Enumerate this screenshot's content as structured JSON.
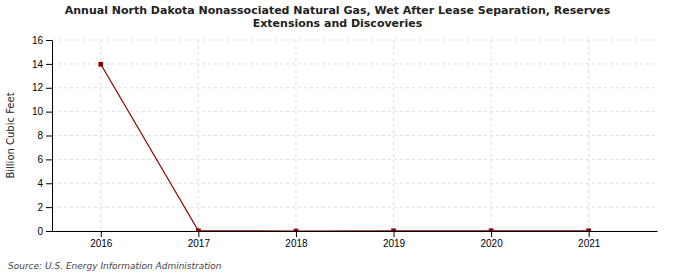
{
  "chart_data": {
    "type": "line",
    "title": "Annual North Dakota Nonassociated Natural Gas, Wet After Lease Separation, Reserves\nExtensions and Discoveries",
    "ylabel": "Billion Cubic Feet",
    "source": "Source: U.S. Energy Information Administration",
    "x": [
      2016,
      2017,
      2018,
      2019,
      2020,
      2021
    ],
    "values": [
      13.967,
      0.02,
      0.0,
      0.02,
      0.02,
      0.02
    ],
    "color": "#8b0000",
    "marker": "square",
    "line_style": "solid",
    "xlim": [
      2015.5,
      2021.7
    ],
    "ylim": [
      0,
      16
    ],
    "xticks": [
      2016,
      2017,
      2018,
      2019,
      2020,
      2021
    ],
    "yticks": [
      0,
      2,
      4,
      6,
      8,
      10,
      12,
      14,
      16
    ],
    "grid": true
  }
}
